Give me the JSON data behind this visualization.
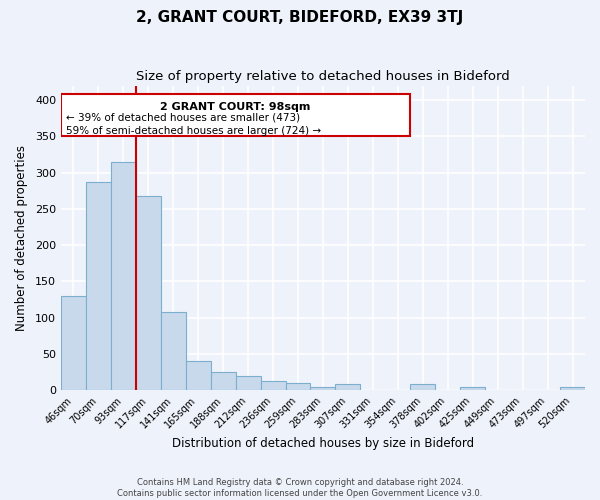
{
  "title": "2, GRANT COURT, BIDEFORD, EX39 3TJ",
  "subtitle": "Size of property relative to detached houses in Bideford",
  "xlabel": "Distribution of detached houses by size in Bideford",
  "ylabel": "Number of detached properties",
  "footer_line1": "Contains HM Land Registry data © Crown copyright and database right 2024.",
  "footer_line2": "Contains public sector information licensed under the Open Government Licence v3.0.",
  "bin_labels": [
    "46sqm",
    "70sqm",
    "93sqm",
    "117sqm",
    "141sqm",
    "165sqm",
    "188sqm",
    "212sqm",
    "236sqm",
    "259sqm",
    "283sqm",
    "307sqm",
    "331sqm",
    "354sqm",
    "378sqm",
    "402sqm",
    "425sqm",
    "449sqm",
    "473sqm",
    "497sqm",
    "520sqm"
  ],
  "bar_values": [
    130,
    287,
    315,
    268,
    108,
    40,
    25,
    20,
    13,
    10,
    5,
    8,
    0,
    0,
    8,
    0,
    5,
    0,
    0,
    0,
    4
  ],
  "bar_color": "#c9d9ec",
  "bar_edge_color": "#7caece",
  "ylim": [
    0,
    420
  ],
  "yticks": [
    0,
    50,
    100,
    150,
    200,
    250,
    300,
    350,
    400
  ],
  "marker_label": "2 GRANT COURT: 98sqm",
  "annotation_line1": "← 39% of detached houses are smaller (473)",
  "annotation_line2": "59% of semi-detached houses are larger (724) →",
  "background_color": "#eef2fa",
  "plot_bg_color": "#eef2fa",
  "grid_color": "#ffffff",
  "title_fontsize": 11,
  "subtitle_fontsize": 9.5,
  "xlabel_fontsize": 8.5,
  "ylabel_fontsize": 8.5
}
